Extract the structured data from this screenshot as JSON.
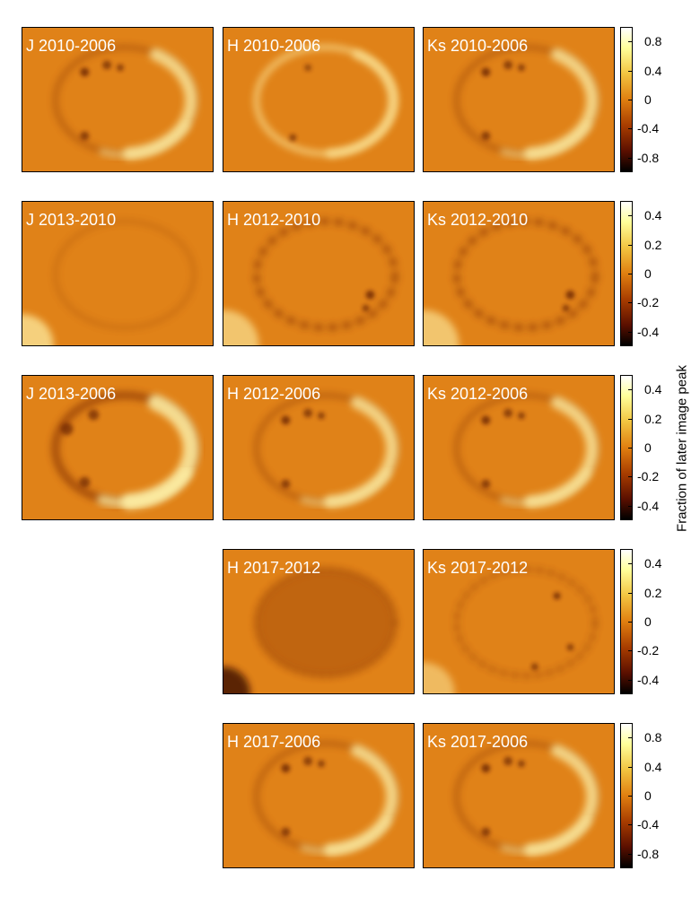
{
  "rows": [
    {
      "panels": [
        {
          "col": 0,
          "label": "J 2010-2006",
          "ring": "bright-right"
        },
        {
          "col": 1,
          "label": "H 2010-2006",
          "ring": "bright-ring"
        },
        {
          "col": 2,
          "label": "Ks 2010-2006",
          "ring": "bright-right"
        }
      ],
      "colorbar": {
        "ticks": [
          "0.8",
          "0.4",
          "0",
          "-0.4",
          "-0.8"
        ]
      }
    },
    {
      "panels": [
        {
          "col": 0,
          "label": "J 2013-2010",
          "ring": "faint"
        },
        {
          "col": 1,
          "label": "H 2012-2010",
          "ring": "dark-ring"
        },
        {
          "col": 2,
          "label": "Ks 2012-2010",
          "ring": "dark-ring"
        }
      ],
      "colorbar": {
        "ticks": [
          "0.4",
          "0.2",
          "0",
          "-0.2",
          "-0.4"
        ]
      }
    },
    {
      "panels": [
        {
          "col": 0,
          "label": "J 2013-2006",
          "ring": "strong-crescent"
        },
        {
          "col": 1,
          "label": "H 2012-2006",
          "ring": "bright-right"
        },
        {
          "col": 2,
          "label": "Ks 2012-2006",
          "ring": "bright-right"
        }
      ],
      "colorbar": {
        "ticks": [
          "0.4",
          "0.2",
          "0",
          "-0.2",
          "-0.4"
        ]
      }
    },
    {
      "panels": [
        {
          "col": 1,
          "label": "H 2017-2012",
          "ring": "dark-ellipse"
        },
        {
          "col": 2,
          "label": "Ks 2017-2012",
          "ring": "dark-ring-noisy"
        }
      ],
      "colorbar": {
        "ticks": [
          "0.4",
          "0.2",
          "0",
          "-0.2",
          "-0.4"
        ]
      }
    },
    {
      "panels": [
        {
          "col": 1,
          "label": "H 2017-2006",
          "ring": "bright-right"
        },
        {
          "col": 2,
          "label": "Ks 2017-2006",
          "ring": "bright-right"
        }
      ],
      "colorbar": {
        "ticks": [
          "0.8",
          "0.4",
          "0",
          "-0.4",
          "-0.8"
        ]
      }
    }
  ],
  "colorbar_label": "Fraction of later image peak",
  "colors": {
    "background": "#e08218",
    "bright": "#fff6b0",
    "dark": "#6a1a00"
  }
}
